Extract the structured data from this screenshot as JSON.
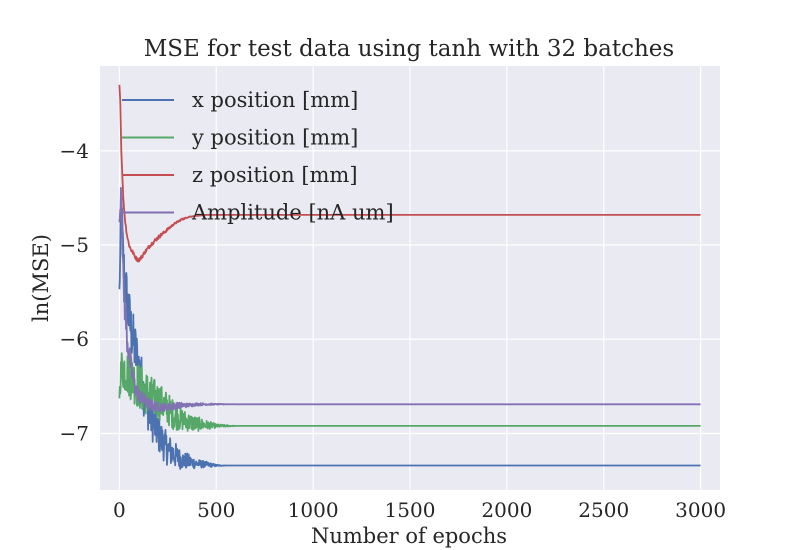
{
  "chart_data": {
    "type": "line",
    "title": "MSE for test data using tanh with 32 batches",
    "xlabel": "Number of epochs",
    "ylabel": "ln(MSE)",
    "xlim": [
      -100,
      3100
    ],
    "ylim": [
      -7.6,
      -3.1
    ],
    "x_ticks": [
      0,
      500,
      1000,
      1500,
      2000,
      2500,
      3000
    ],
    "x_tick_labels": [
      "0",
      "500",
      "1000",
      "1500",
      "2000",
      "2500",
      "3000"
    ],
    "y_ticks": [
      -4,
      -5,
      -6,
      -7
    ],
    "y_tick_labels": [
      "−4",
      "−5",
      "−6",
      "−7"
    ],
    "grid": true,
    "legend_position": "upper-left",
    "background": "#eaeaf2",
    "series": [
      {
        "name": "x position [mm]",
        "color": "#4c72b0",
        "x": [
          0,
          10,
          20,
          40,
          60,
          80,
          100,
          130,
          160,
          200,
          240,
          280,
          320,
          360,
          400,
          450,
          500,
          550,
          600,
          800,
          1000,
          1500,
          2000,
          2500,
          3000
        ],
        "y": [
          -5.5,
          -4.6,
          -5.2,
          -5.6,
          -5.9,
          -6.1,
          -6.3,
          -6.6,
          -6.8,
          -7.0,
          -7.15,
          -7.22,
          -7.28,
          -7.3,
          -7.32,
          -7.33,
          -7.34,
          -7.34,
          -7.34,
          -7.34,
          -7.34,
          -7.34,
          -7.34,
          -7.34,
          -7.34
        ],
        "noise": [
          0.1,
          0.3,
          0.3,
          0.3,
          0.3,
          0.3,
          0.3,
          0.25,
          0.25,
          0.2,
          0.18,
          0.15,
          0.1,
          0.08,
          0.05,
          0.03,
          0.01,
          0,
          0,
          0,
          0,
          0,
          0,
          0,
          0
        ]
      },
      {
        "name": "y position [mm]",
        "color": "#55a868",
        "x": [
          0,
          10,
          20,
          40,
          60,
          80,
          100,
          130,
          160,
          200,
          240,
          280,
          320,
          360,
          400,
          450,
          500,
          550,
          600,
          800,
          1000,
          1500,
          2000,
          2500,
          3000
        ],
        "y": [
          -6.6,
          -6.3,
          -6.3,
          -6.35,
          -6.4,
          -6.45,
          -6.5,
          -6.55,
          -6.6,
          -6.65,
          -6.72,
          -6.8,
          -6.85,
          -6.88,
          -6.9,
          -6.91,
          -6.92,
          -6.92,
          -6.92,
          -6.92,
          -6.92,
          -6.92,
          -6.92,
          -6.92,
          -6.92
        ],
        "noise": [
          0.05,
          0.2,
          0.25,
          0.25,
          0.25,
          0.25,
          0.25,
          0.25,
          0.22,
          0.2,
          0.18,
          0.16,
          0.12,
          0.1,
          0.08,
          0.05,
          0.02,
          0.01,
          0,
          0,
          0,
          0,
          0,
          0,
          0
        ]
      },
      {
        "name": "z position [mm]",
        "color": "#c44e52",
        "x": [
          0,
          5,
          10,
          20,
          30,
          40,
          50,
          60,
          70,
          80,
          90,
          100,
          110,
          130,
          160,
          200,
          240,
          280,
          320,
          360,
          400,
          450,
          500,
          600,
          800,
          1000,
          1500,
          2000,
          2500,
          3000
        ],
        "y": [
          -3.3,
          -3.5,
          -4.0,
          -4.5,
          -4.75,
          -4.9,
          -5.0,
          -5.05,
          -5.08,
          -5.12,
          -5.15,
          -5.16,
          -5.14,
          -5.08,
          -5.0,
          -4.92,
          -4.85,
          -4.78,
          -4.73,
          -4.7,
          -4.69,
          -4.68,
          -4.68,
          -4.68,
          -4.68,
          -4.68,
          -4.68,
          -4.68,
          -4.68,
          -4.68
        ],
        "noise": [
          0,
          0,
          0,
          0.02,
          0.02,
          0.02,
          0.02,
          0.02,
          0.02,
          0.02,
          0.02,
          0.02,
          0.02,
          0.02,
          0.02,
          0.02,
          0.015,
          0.01,
          0.01,
          0.005,
          0,
          0,
          0,
          0,
          0,
          0,
          0,
          0,
          0,
          0
        ]
      },
      {
        "name": "Amplitude [nA um]",
        "color": "#8172b2",
        "x": [
          0,
          10,
          20,
          40,
          60,
          80,
          100,
          130,
          160,
          200,
          240,
          280,
          320,
          360,
          400,
          450,
          500,
          600,
          800,
          1000,
          1500,
          2000,
          2500,
          3000
        ],
        "y": [
          -4.8,
          -4.3,
          -5.4,
          -6.0,
          -6.3,
          -6.5,
          -6.6,
          -6.65,
          -6.7,
          -6.72,
          -6.72,
          -6.71,
          -6.7,
          -6.7,
          -6.69,
          -6.69,
          -6.69,
          -6.69,
          -6.69,
          -6.69,
          -6.69,
          -6.69,
          -6.69,
          -6.69
        ],
        "noise": [
          0.05,
          0.2,
          0.2,
          0.15,
          0.12,
          0.1,
          0.08,
          0.07,
          0.06,
          0.05,
          0.04,
          0.04,
          0.03,
          0.02,
          0.015,
          0.01,
          0.005,
          0,
          0,
          0,
          0,
          0,
          0,
          0
        ]
      }
    ]
  }
}
